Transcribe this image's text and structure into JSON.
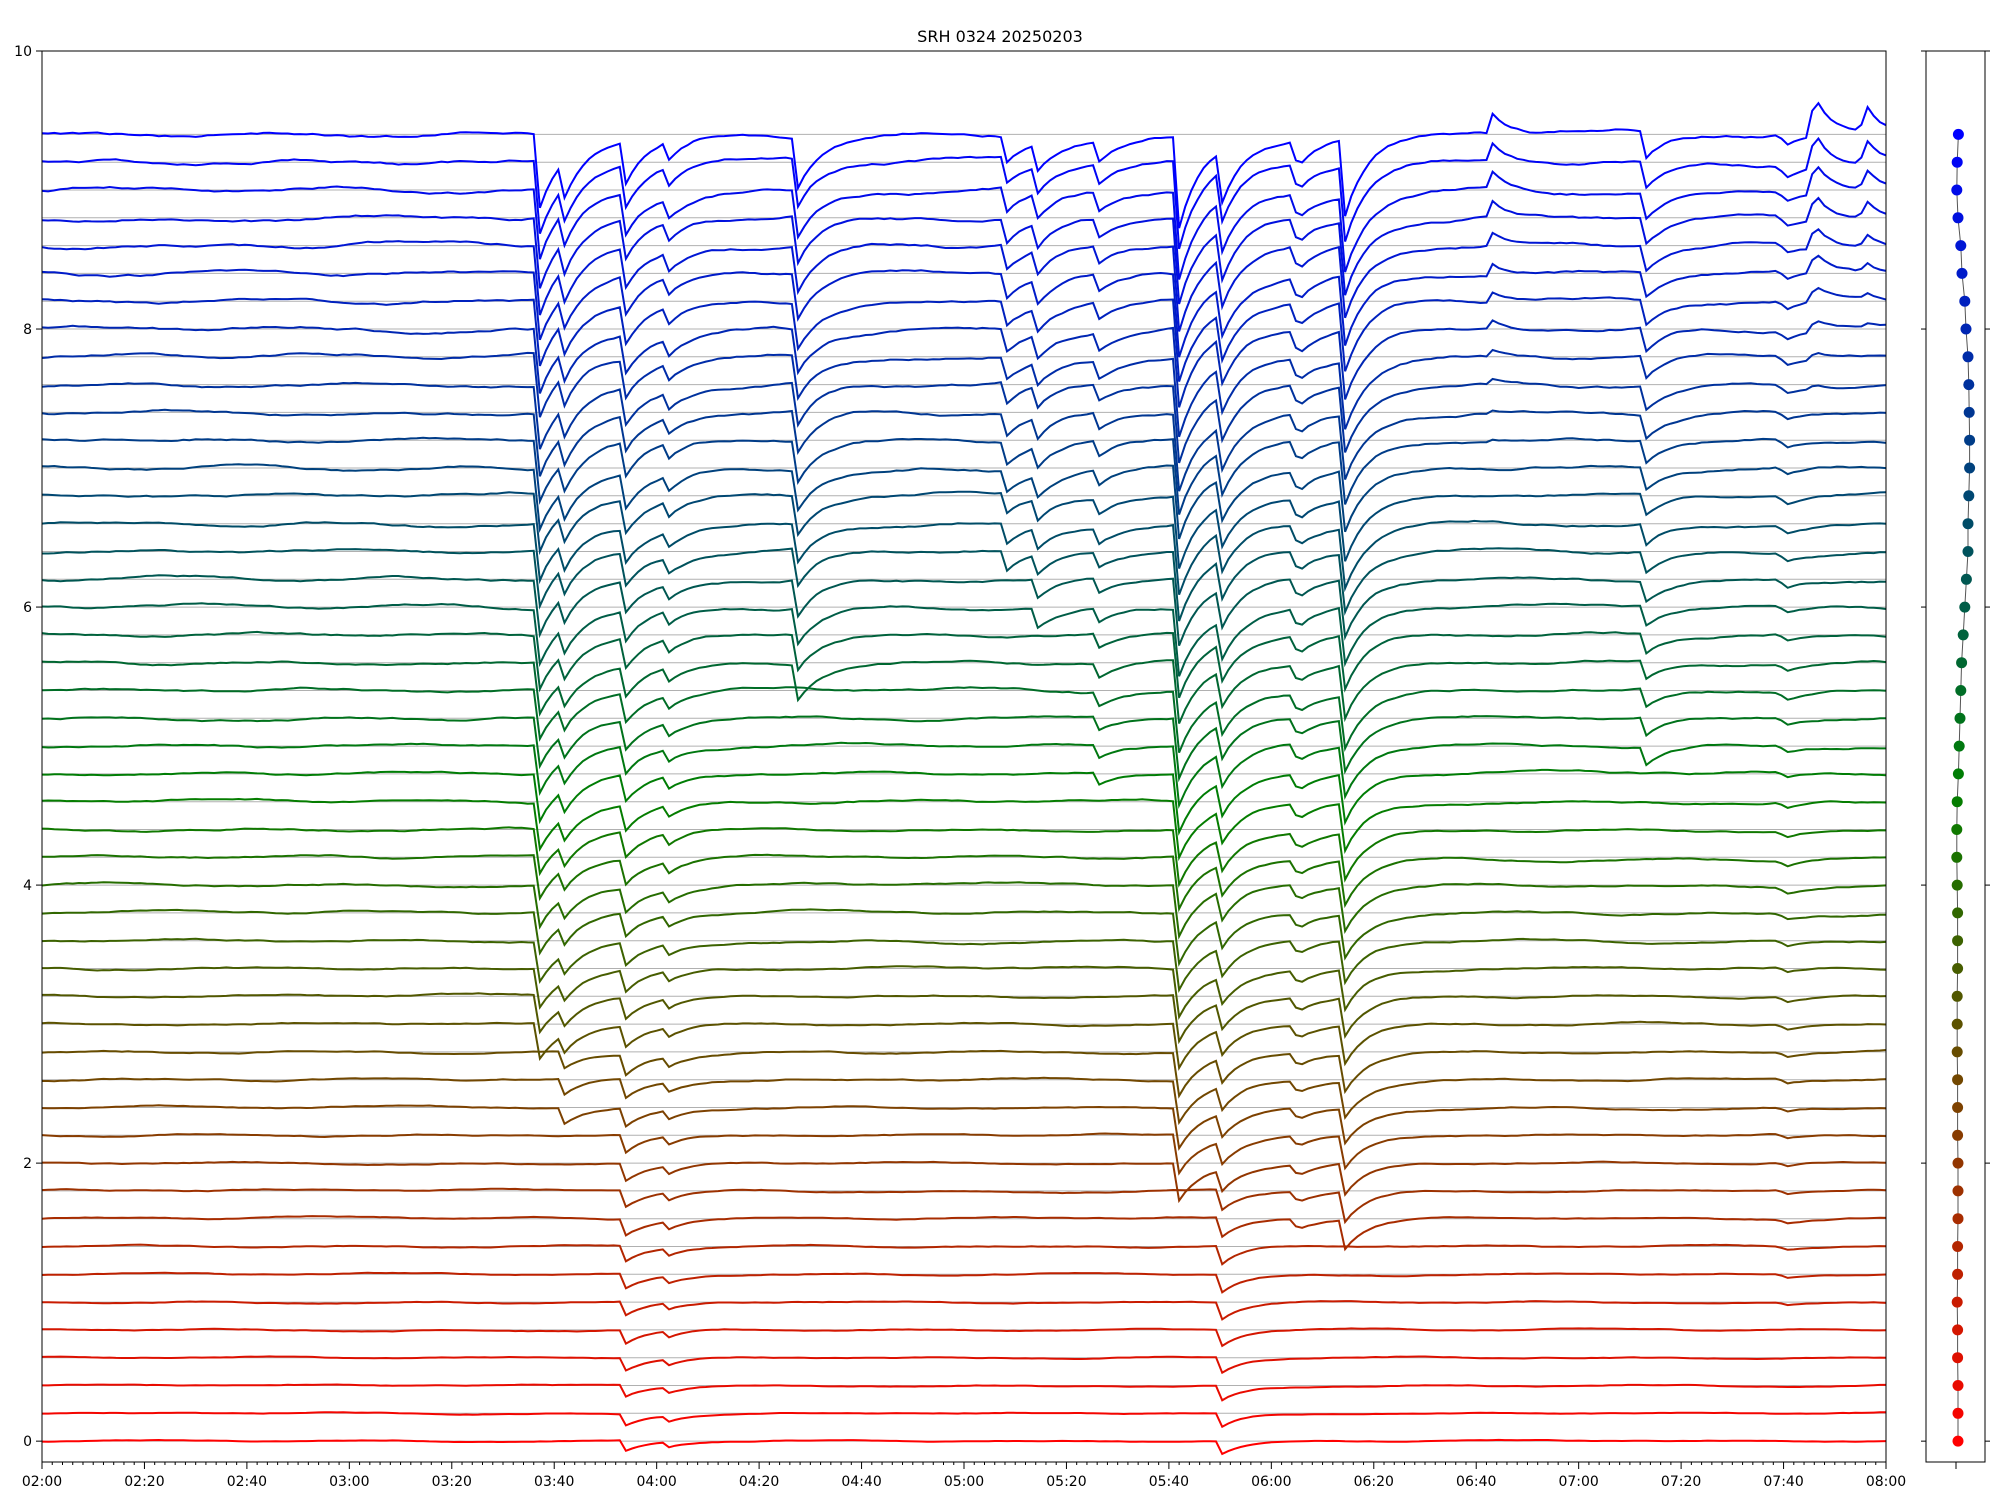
{
  "chart_data": {
    "type": "line",
    "title": "SRH 0324 20250203",
    "xlabel": "",
    "ylabel": "",
    "x_range": [
      "02:00",
      "08:00"
    ],
    "ylim": [
      0,
      10
    ],
    "grid": "horizontal baseline per trace",
    "x_ticks": [
      "02:00",
      "02:20",
      "02:40",
      "03:00",
      "03:20",
      "03:40",
      "04:00",
      "04:20",
      "04:40",
      "05:00",
      "05:20",
      "05:40",
      "06:00",
      "06:20",
      "06:40",
      "07:00",
      "07:20",
      "07:40",
      "08:00"
    ],
    "y_ticks": [
      "0",
      "2",
      "4",
      "6",
      "8",
      "10"
    ],
    "n_traces": 48,
    "trace_spacing": 0.2,
    "color_low": "#ff0000",
    "color_mid": "#008000",
    "color_high": "#0000ff",
    "events": [
      {
        "time": "03:37",
        "depth": 0.55,
        "min_trace": 15
      },
      {
        "time": "03:42",
        "depth": 0.25,
        "min_trace": 12
      },
      {
        "time": "03:54",
        "depth": 0.3,
        "min_trace": 0
      },
      {
        "time": "04:02",
        "depth": 0.15,
        "min_trace": 0
      },
      {
        "time": "04:27",
        "depth": 0.4,
        "min_trace": 28
      },
      {
        "time": "05:08",
        "depth": 0.2,
        "min_trace": 32
      },
      {
        "time": "05:14",
        "depth": 0.2,
        "min_trace": 30
      },
      {
        "time": "05:26",
        "depth": 0.15,
        "min_trace": 24
      },
      {
        "time": "05:42",
        "depth": 0.65,
        "min_trace": 10
      },
      {
        "time": "05:50",
        "depth": 0.4,
        "min_trace": 0
      },
      {
        "time": "06:05",
        "depth": 0.2,
        "min_trace": 8
      },
      {
        "time": "06:14",
        "depth": 0.6,
        "min_trace": 8
      },
      {
        "time": "07:13",
        "depth": 0.2,
        "min_trace": 25
      },
      {
        "time": "07:40",
        "depth": 0.08,
        "min_trace": 5
      }
    ],
    "spikes": [
      {
        "time": "06:43",
        "height": 0.15,
        "min_trace": 36
      },
      {
        "time": "07:46",
        "height": 0.3,
        "min_trace": 38
      },
      {
        "time": "07:56",
        "height": 0.2,
        "min_trace": 40
      }
    ],
    "side_panel": {
      "type": "scatter",
      "points_y": [
        0.0,
        0.2,
        0.4,
        0.6,
        0.8,
        1.0,
        1.2,
        1.4,
        1.6,
        1.8,
        2.0,
        2.2,
        2.4,
        2.6,
        2.8,
        3.0,
        3.2,
        3.4,
        3.6,
        3.8,
        4.0,
        4.2,
        4.4,
        4.6,
        4.8,
        5.0,
        5.2,
        5.4,
        5.6,
        5.8,
        6.0,
        6.2,
        6.4,
        6.6,
        6.8,
        7.0,
        7.2,
        7.4,
        7.6,
        7.8,
        8.0,
        8.2,
        8.4,
        8.6,
        8.8,
        9.0,
        9.2,
        9.4
      ],
      "points_x": [
        0.05,
        0.05,
        0.05,
        0.04,
        0.04,
        0.03,
        0.04,
        0.04,
        0.05,
        0.05,
        0.05,
        0.04,
        0.04,
        0.04,
        0.03,
        0.03,
        0.03,
        0.04,
        0.04,
        0.04,
        0.03,
        0.02,
        0.02,
        0.03,
        0.06,
        0.08,
        0.1,
        0.12,
        0.14,
        0.18,
        0.22,
        0.26,
        0.3,
        0.3,
        0.32,
        0.34,
        0.34,
        0.33,
        0.32,
        0.3,
        0.25,
        0.22,
        0.15,
        0.12,
        0.05,
        0.02,
        0.03,
        0.06
      ]
    }
  }
}
